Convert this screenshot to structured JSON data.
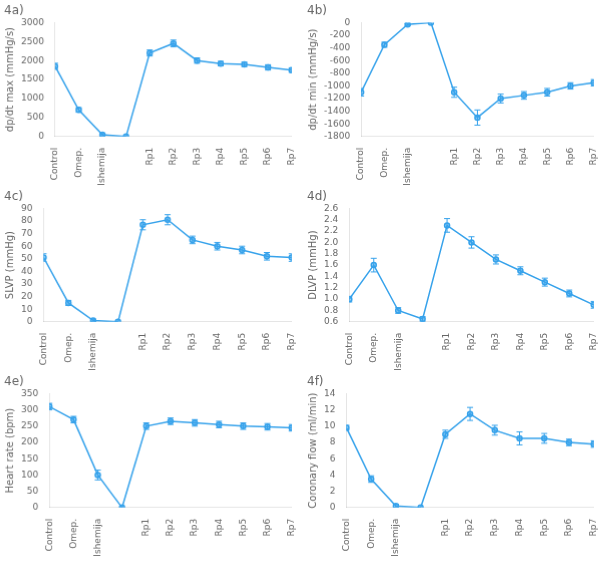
{
  "chart_data": [
    {
      "type": "line",
      "title": "4a)",
      "y_label": "dp/dt max (mmHg/s)",
      "categories": [
        "Control",
        "Omep.",
        "Ishemija",
        null,
        "Rp1",
        "Rp2",
        "Rp3",
        "Rp4",
        "Rp5",
        "Rp6",
        "Rp7"
      ],
      "values": [
        1850,
        700,
        50,
        0,
        2200,
        2450,
        2000,
        1920,
        1900,
        1820,
        1750
      ],
      "errors": [
        80,
        60,
        30,
        0,
        80,
        90,
        70,
        60,
        60,
        70,
        60
      ],
      "ylim": [
        0,
        3000
      ],
      "yticks": [
        0,
        500,
        1000,
        1500,
        2000,
        2500,
        3000
      ],
      "grid": false,
      "marker": "circle"
    },
    {
      "type": "line",
      "title": "4b)",
      "y_label": "dp/dt min (mmHg/s)",
      "categories": [
        "Control",
        "Omep.",
        "Ishemija",
        null,
        "Rp1",
        "Rp2",
        "Rp3",
        "Rp4",
        "Rp5",
        "Rp6",
        "Rp7"
      ],
      "values": [
        -1100,
        -350,
        -30,
        0,
        -1100,
        -1500,
        -1200,
        -1150,
        -1100,
        -1000,
        -950
      ],
      "errors": [
        60,
        40,
        15,
        0,
        80,
        120,
        70,
        60,
        60,
        50,
        50
      ],
      "ylim": [
        -1800,
        0
      ],
      "yticks": [
        -1800,
        -1600,
        -1400,
        -1200,
        -1000,
        -800,
        -600,
        -400,
        -200,
        0
      ],
      "grid": false,
      "marker": "circle"
    },
    {
      "type": "line",
      "title": "4c)",
      "y_label": "SLVP (mmHg)",
      "categories": [
        "Control",
        "Omep.",
        "Ishemija",
        null,
        "Rp1",
        "Rp2",
        "Rp3",
        "Rp4",
        "Rp5",
        "Rp6",
        "Rp7"
      ],
      "values": [
        51,
        15,
        1,
        0,
        77,
        81,
        65,
        60,
        57,
        52,
        51
      ],
      "errors": [
        3,
        2,
        1,
        0,
        4,
        4,
        3,
        3,
        3,
        3,
        3
      ],
      "ylim": [
        0,
        90
      ],
      "yticks": [
        0,
        10,
        20,
        30,
        40,
        50,
        60,
        70,
        80,
        90
      ],
      "grid": false,
      "marker": "circle"
    },
    {
      "type": "line",
      "title": "4d)",
      "y_label": "DLVP (mmHg)",
      "categories": [
        "Control",
        "Omep.",
        "Ishemija",
        null,
        "Rp1",
        "Rp2",
        "Rp3",
        "Rp4",
        "Rp5",
        "Rp6",
        "Rp7"
      ],
      "values": [
        1.0,
        1.6,
        0.8,
        0.65,
        2.3,
        2.0,
        1.7,
        1.5,
        1.3,
        1.1,
        0.9
      ],
      "errors": [
        0.05,
        0.12,
        0.05,
        0.04,
        0.12,
        0.1,
        0.08,
        0.07,
        0.07,
        0.06,
        0.06
      ],
      "ylim": [
        0.6,
        2.6
      ],
      "yticks": [
        0.6,
        0.8,
        {
          "value": 1.0,
          "label": "1.0"
        },
        1.2,
        1.4,
        1.6,
        1.8,
        {
          "value": 2.0,
          "label": "2.0"
        },
        2.2,
        2.4,
        2.6
      ],
      "grid": false,
      "marker": "circle"
    },
    {
      "type": "line",
      "title": "4e)",
      "y_label": "Heart rate (bpm)",
      "categories": [
        "Control",
        "Omep.",
        "Ishemija",
        null,
        "Rp1",
        "Rp2",
        "Rp3",
        "Rp4",
        "Rp5",
        "Rp6",
        "Rp7"
      ],
      "values": [
        310,
        270,
        100,
        0,
        250,
        265,
        260,
        255,
        250,
        248,
        245
      ],
      "errors": [
        10,
        10,
        15,
        0,
        10,
        10,
        10,
        10,
        10,
        10,
        10
      ],
      "ylim": [
        0,
        350
      ],
      "yticks": [
        0,
        50,
        100,
        150,
        200,
        250,
        300,
        350
      ],
      "grid": false,
      "marker": "circle"
    },
    {
      "type": "line",
      "title": "4f)",
      "y_label": "Coronary flow (ml/min)",
      "categories": [
        "Control",
        "Omep.",
        "Ishemija",
        null,
        "Rp1",
        "Rp2",
        "Rp3",
        "Rp4",
        "Rp5",
        "Rp6",
        "Rp7"
      ],
      "values": [
        9.8,
        3.5,
        0.2,
        0.0,
        9.0,
        11.5,
        9.5,
        8.5,
        8.5,
        8.0,
        7.8
      ],
      "errors": [
        0.3,
        0.4,
        0.2,
        0.0,
        0.5,
        0.8,
        0.6,
        0.8,
        0.6,
        0.4,
        0.4
      ],
      "ylim": [
        0,
        14
      ],
      "yticks": [
        0,
        2,
        4,
        6,
        8,
        10,
        12,
        14
      ],
      "grid": false,
      "marker": "circle"
    }
  ]
}
